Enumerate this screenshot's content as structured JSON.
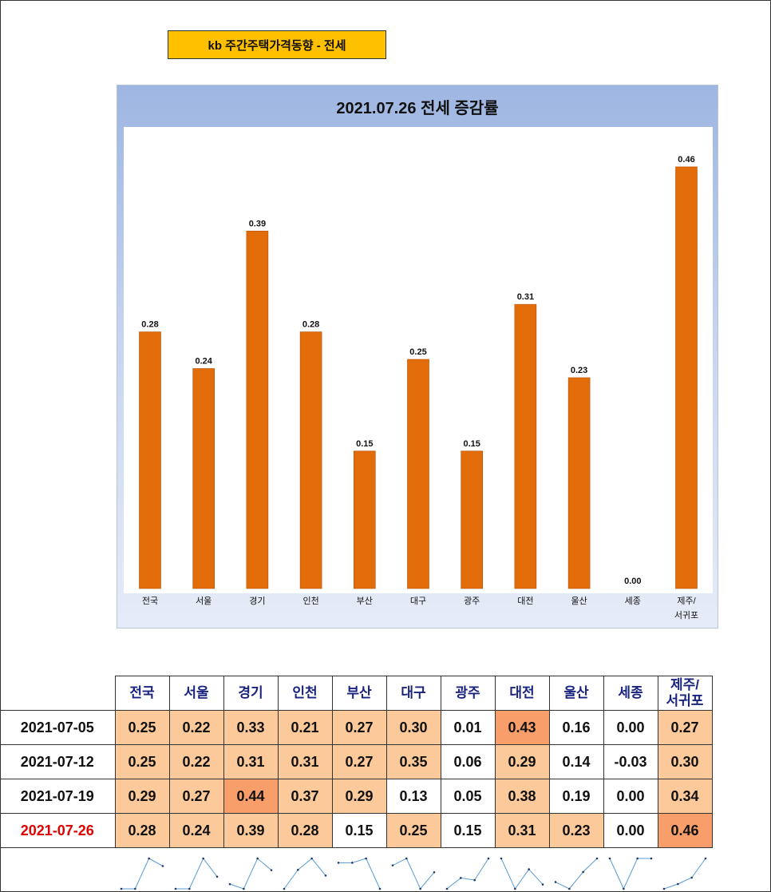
{
  "header_box": {
    "title": "kb 주간주택가격동향 - 전세"
  },
  "chart_data": {
    "type": "bar",
    "title": "2021.07.26 전세 증감률",
    "categories": [
      "전국",
      "서울",
      "경기",
      "인천",
      "부산",
      "대구",
      "광주",
      "대전",
      "울산",
      "세종",
      "제주/\n서귀포"
    ],
    "values": [
      0.28,
      0.24,
      0.39,
      0.28,
      0.15,
      0.25,
      0.15,
      0.31,
      0.23,
      0.0,
      0.46
    ],
    "labels": [
      "0.28",
      "0.24",
      "0.39",
      "0.28",
      "0.15",
      "0.25",
      "0.15",
      "0.31",
      "0.23",
      "0.00",
      "0.46"
    ],
    "bar_color": "#e36c0a",
    "ylim": [
      0,
      0.5
    ],
    "xlabel": "",
    "ylabel": "",
    "grid": false
  },
  "table": {
    "headers": [
      "전국",
      "서울",
      "경기",
      "인천",
      "부산",
      "대구",
      "광주",
      "대전",
      "울산",
      "세종",
      "제주/\n서귀포"
    ],
    "rows": [
      {
        "date": "2021-07-05",
        "values": [
          "0.25",
          "0.22",
          "0.33",
          "0.21",
          "0.27",
          "0.30",
          "0.01",
          "0.43",
          "0.16",
          "0.00",
          "0.27"
        ]
      },
      {
        "date": "2021-07-12",
        "values": [
          "0.25",
          "0.22",
          "0.31",
          "0.31",
          "0.27",
          "0.35",
          "0.06",
          "0.29",
          "0.14",
          "-0.03",
          "0.30"
        ]
      },
      {
        "date": "2021-07-19",
        "values": [
          "0.29",
          "0.27",
          "0.44",
          "0.37",
          "0.29",
          "0.13",
          "0.05",
          "0.38",
          "0.19",
          "0.00",
          "0.34"
        ]
      },
      {
        "date": "2021-07-26",
        "values": [
          "0.28",
          "0.24",
          "0.39",
          "0.28",
          "0.15",
          "0.25",
          "0.15",
          "0.31",
          "0.23",
          "0.00",
          "0.46"
        ]
      }
    ],
    "highlight_date_color": "#e00000",
    "light_fill": "#fcc99b",
    "strong_fill": "#f79e6a"
  }
}
